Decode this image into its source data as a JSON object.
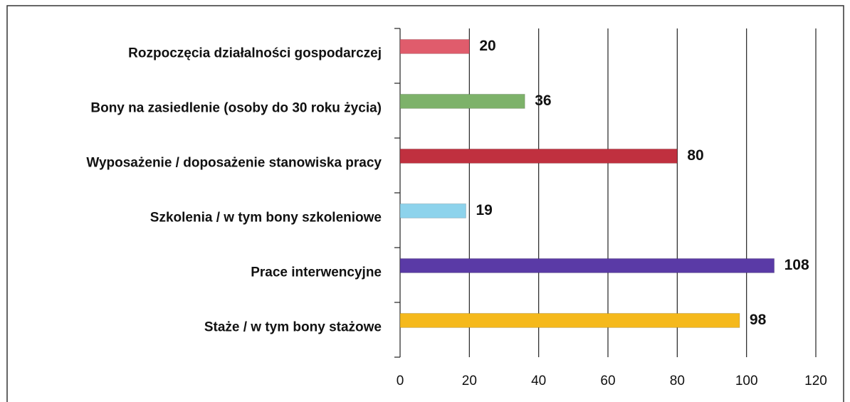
{
  "chart_data": {
    "type": "hbar",
    "categories": [
      "Rozpoczęcia działalności gospodarczej",
      "Bony na zasiedlenie (osoby do 30  roku życia)",
      "Wyposażenie / doposażenie stanowiska pracy",
      "Szkolenia / w tym bony szkoleniowe",
      "Prace interwencyjne",
      "Staże / w tym bony stażowe"
    ],
    "values": [
      20,
      36,
      80,
      19,
      108,
      98
    ],
    "colors": [
      "#e05c6c",
      "#7db26a",
      "#c0303f",
      "#8dd3ec",
      "#5a3aa6",
      "#f5b91c"
    ],
    "xlim": [
      0,
      120
    ],
    "xticks": [
      0,
      20,
      40,
      60,
      80,
      100,
      120
    ],
    "grid": true
  }
}
